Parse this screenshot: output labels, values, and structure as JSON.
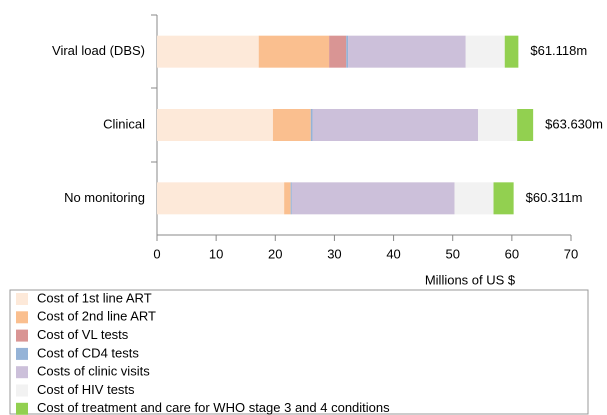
{
  "chart_data": {
    "type": "stacked-bar-horizontal",
    "categories": [
      "Viral load (DBS)",
      "Clinical",
      "No monitoring"
    ],
    "series": [
      {
        "name": "Cost of 1st line ART",
        "color": "#fde9d9",
        "values": [
          17.2,
          19.6,
          21.5
        ]
      },
      {
        "name": "Cost of 2nd line ART",
        "color": "#fabf8f",
        "values": [
          11.9,
          6.4,
          1.1
        ]
      },
      {
        "name": "Cost of VL tests",
        "color": "#d99594",
        "values": [
          2.9,
          0,
          0
        ]
      },
      {
        "name": "Cost of CD4 tests",
        "color": "#95b3d7",
        "values": [
          0.3,
          0.3,
          0.2
        ]
      },
      {
        "name": "Costs of clinic visits",
        "color": "#ccc0da",
        "values": [
          19.9,
          28.0,
          27.5
        ]
      },
      {
        "name": "Cost of HIV tests",
        "color": "#f2f2f2",
        "values": [
          6.6,
          6.6,
          6.6
        ]
      },
      {
        "name": "Cost of treatment and care for WHO stage 3 and 4 conditions",
        "color": "#92d050",
        "values": [
          2.3,
          2.7,
          3.4
        ]
      }
    ],
    "totals": {
      "values": [
        61.118,
        63.63,
        60.311
      ],
      "value_labels": [
        "$61.118m",
        "$63.630m",
        "$60.311m"
      ]
    },
    "x_label": "Millions of US $",
    "xlim": [
      0,
      70
    ],
    "xticks": [
      0,
      10,
      20,
      30,
      40,
      50,
      60,
      70
    ],
    "legend": "bottom-left"
  }
}
